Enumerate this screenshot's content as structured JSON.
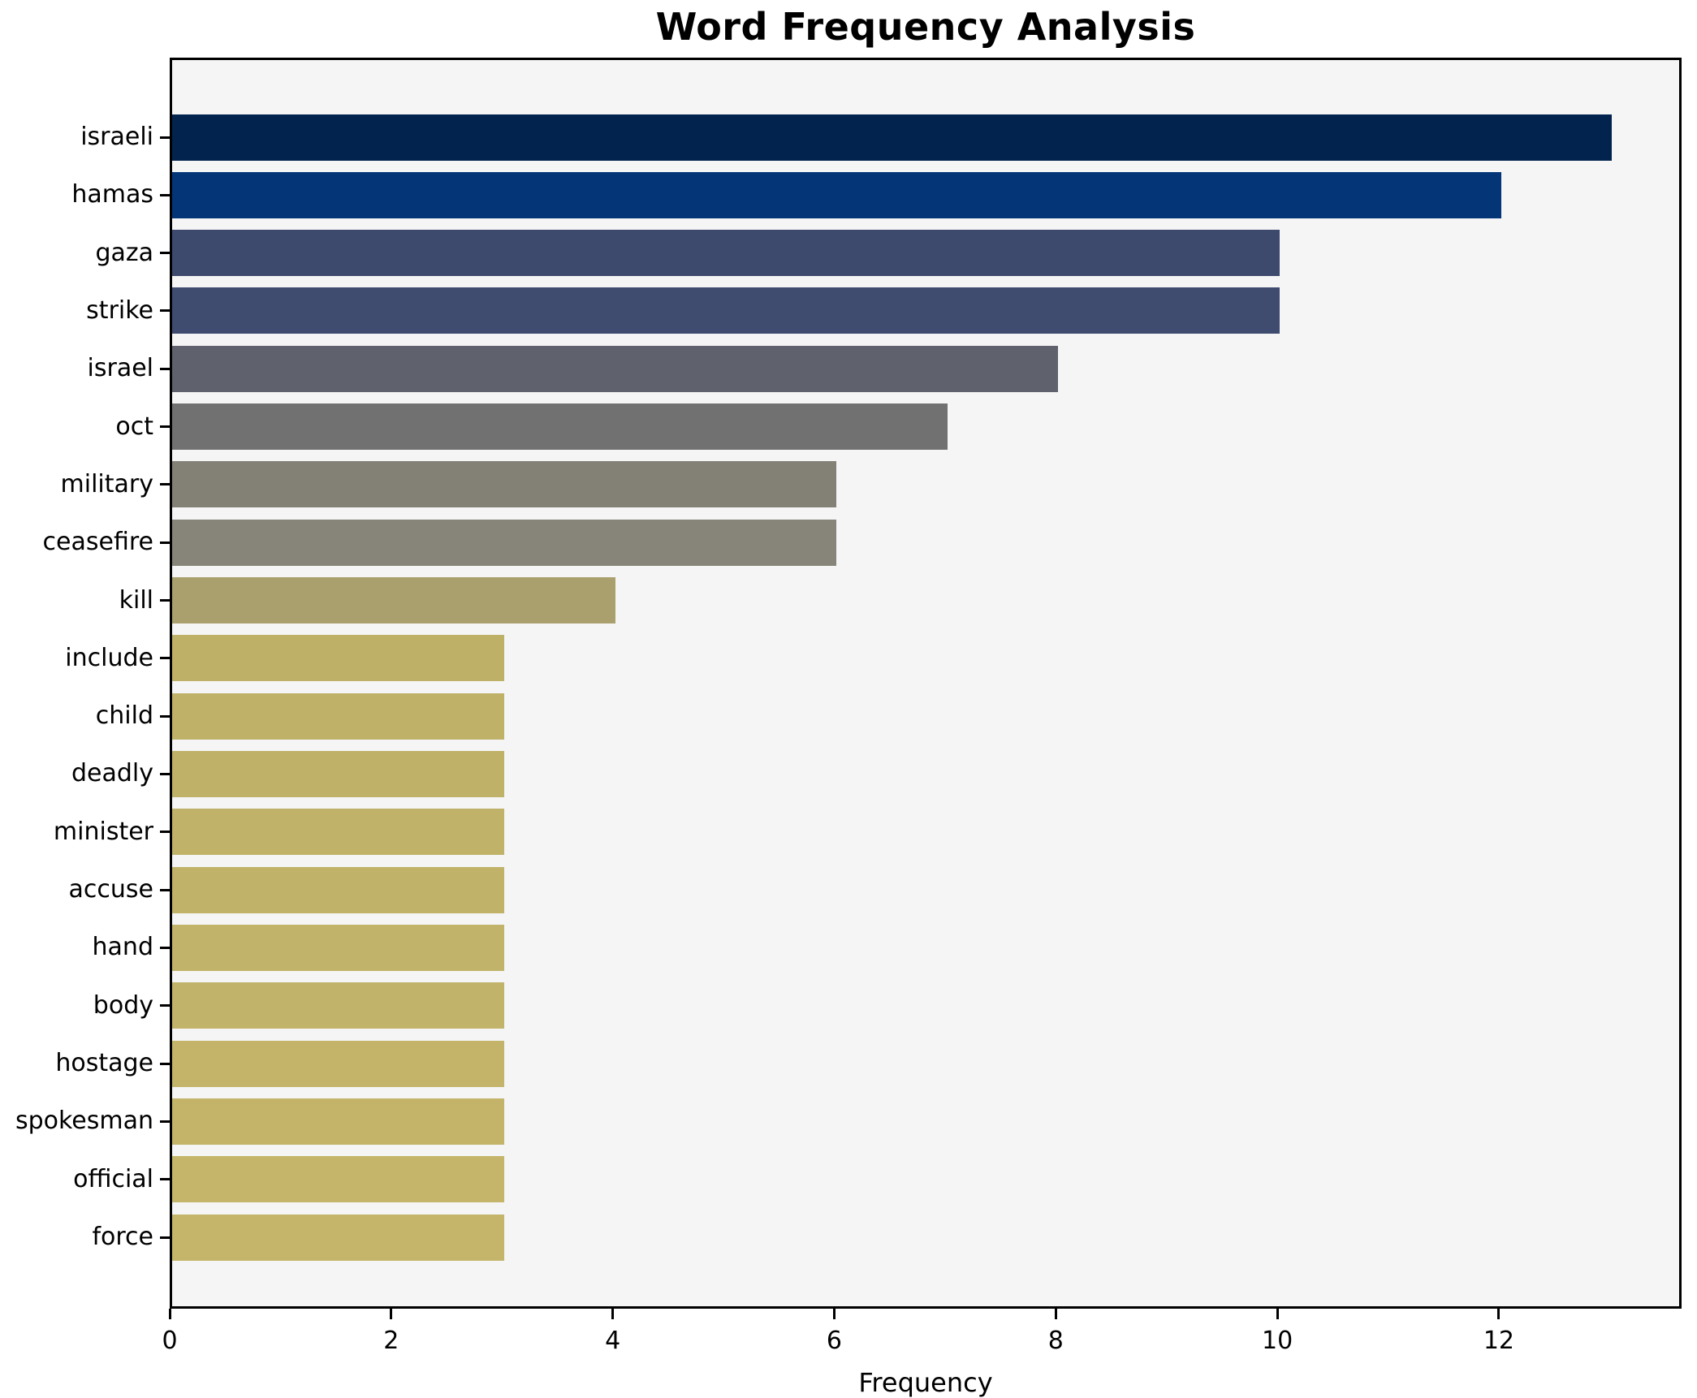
{
  "chart_data": {
    "type": "bar",
    "orientation": "horizontal",
    "title": "Word Frequency Analysis",
    "xlabel": "Frequency",
    "ylabel": "",
    "categories": [
      "israeli",
      "hamas",
      "gaza",
      "strike",
      "israel",
      "oct",
      "military",
      "ceasefire",
      "kill",
      "include",
      "child",
      "deadly",
      "minister",
      "accuse",
      "hand",
      "body",
      "hostage",
      "spokesman",
      "official",
      "force"
    ],
    "values": [
      13,
      12,
      10,
      10,
      8,
      7,
      6,
      6,
      4,
      3,
      3,
      3,
      3,
      3,
      3,
      3,
      3,
      3,
      3,
      3
    ],
    "bar_colors": [
      "#02234e",
      "#043577",
      "#3d4a6e",
      "#3f4c70",
      "#5f626d",
      "#717171",
      "#838076",
      "#87847a",
      "#aaa06d",
      "#bfb068",
      "#c0b169",
      "#c0b169",
      "#c1b269",
      "#c1b269",
      "#c2b36a",
      "#c2b36a",
      "#c3b46a",
      "#c3b46a",
      "#c4b56b",
      "#c4b56b"
    ],
    "xlim": [
      0,
      13.65
    ],
    "x_ticks": [
      0,
      2,
      4,
      6,
      8,
      10,
      12
    ],
    "grid": false,
    "legend": "none",
    "plot_background": "#f5f5f6",
    "spine_color": "#000000",
    "title_color": "#000000"
  }
}
